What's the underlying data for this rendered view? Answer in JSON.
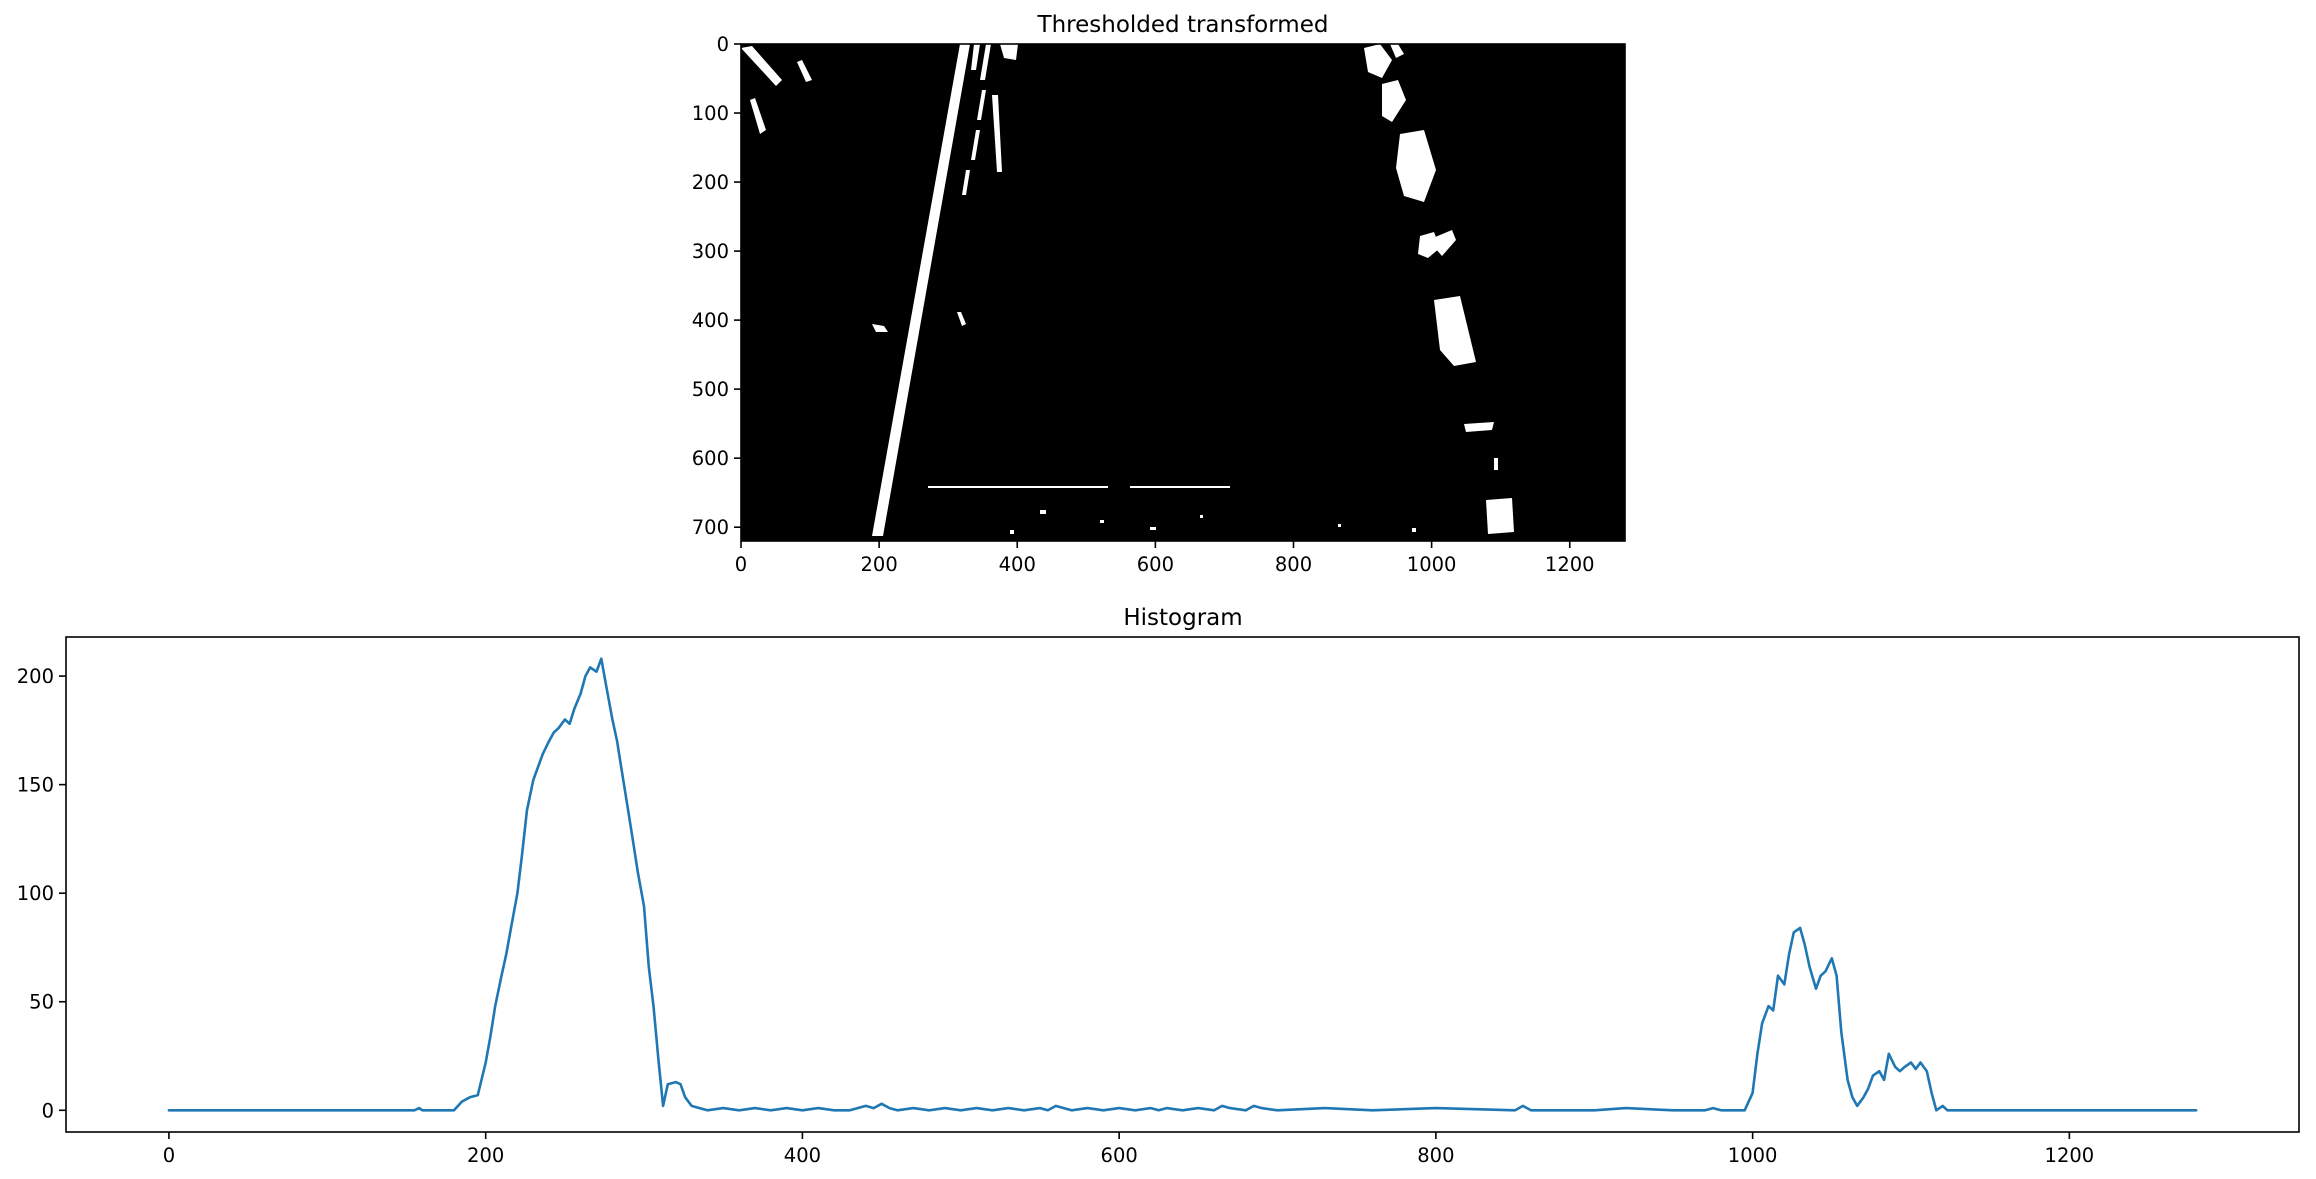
{
  "chart_data": [
    {
      "type": "image",
      "title": "Thresholded transformed",
      "xlabel": "",
      "ylabel": "",
      "xlim": [
        0,
        1280
      ],
      "ylim": [
        720,
        0
      ],
      "xticks": [
        "0",
        "200",
        "400",
        "600",
        "800",
        "1000",
        "1200"
      ],
      "yticks": [
        "0",
        "100",
        "200",
        "300",
        "400",
        "500",
        "600",
        "700"
      ],
      "colors": {
        "background": "#000000",
        "foreground": "#ffffff"
      }
    },
    {
      "type": "line",
      "title": "Histogram",
      "xlabel": "",
      "ylabel": "",
      "xlim": [
        -65,
        1345
      ],
      "ylim": [
        -10,
        218
      ],
      "xticks": [
        "0",
        "200",
        "400",
        "600",
        "800",
        "1000",
        "1200"
      ],
      "yticks": [
        "0",
        "50",
        "100",
        "150",
        "200"
      ],
      "grid": false,
      "color": "#1f77b4",
      "series": [
        {
          "x": [
            0,
            155,
            158,
            160,
            170,
            180,
            185,
            190,
            195,
            200,
            203,
            206,
            210,
            213,
            216,
            220,
            223,
            226,
            230,
            233,
            236,
            240,
            243,
            246,
            250,
            253,
            256,
            260,
            263,
            266,
            270,
            273,
            276,
            280,
            283,
            286,
            290,
            293,
            296,
            300,
            303,
            306,
            309,
            312,
            315,
            320,
            323,
            326,
            330,
            335,
            340,
            350,
            360,
            370,
            380,
            390,
            400,
            410,
            420,
            430,
            440,
            445,
            450,
            455,
            460,
            470,
            480,
            490,
            500,
            510,
            520,
            530,
            540,
            550,
            555,
            560,
            565,
            570,
            580,
            590,
            600,
            610,
            620,
            625,
            630,
            640,
            650,
            660,
            665,
            670,
            680,
            685,
            690,
            700,
            730,
            760,
            800,
            850,
            855,
            860,
            900,
            920,
            950,
            970,
            975,
            980,
            995,
            1000,
            1003,
            1006,
            1010,
            1013,
            1016,
            1020,
            1023,
            1026,
            1030,
            1033,
            1036,
            1040,
            1043,
            1046,
            1050,
            1053,
            1056,
            1060,
            1063,
            1066,
            1070,
            1073,
            1076,
            1080,
            1083,
            1086,
            1090,
            1093,
            1096,
            1100,
            1103,
            1106,
            1110,
            1113,
            1116,
            1120,
            1123,
            1126,
            1130,
            1200,
            1280
          ],
          "y": [
            0,
            0,
            1,
            0,
            0,
            0,
            4,
            6,
            7,
            22,
            34,
            48,
            62,
            72,
            84,
            100,
            118,
            138,
            152,
            158,
            164,
            170,
            174,
            176,
            180,
            178,
            185,
            192,
            200,
            204,
            202,
            208,
            196,
            180,
            170,
            156,
            138,
            124,
            110,
            94,
            66,
            48,
            24,
            2,
            12,
            13,
            12,
            6,
            2,
            1,
            0,
            1,
            0,
            1,
            0,
            1,
            0,
            1,
            0,
            0,
            2,
            1,
            3,
            1,
            0,
            1,
            0,
            1,
            0,
            1,
            0,
            1,
            0,
            1,
            0,
            2,
            1,
            0,
            1,
            0,
            1,
            0,
            1,
            0,
            1,
            0,
            1,
            0,
            2,
            1,
            0,
            2,
            1,
            0,
            1,
            0,
            1,
            0,
            2,
            0,
            0,
            1,
            0,
            0,
            1,
            0,
            0,
            8,
            26,
            40,
            48,
            46,
            62,
            58,
            72,
            82,
            84,
            76,
            66,
            56,
            62,
            64,
            70,
            62,
            36,
            14,
            6,
            2,
            6,
            10,
            16,
            18,
            14,
            26,
            20,
            18,
            20,
            22,
            19,
            22,
            18,
            8,
            0,
            2,
            0,
            0,
            0,
            0,
            0
          ]
        }
      ]
    }
  ]
}
